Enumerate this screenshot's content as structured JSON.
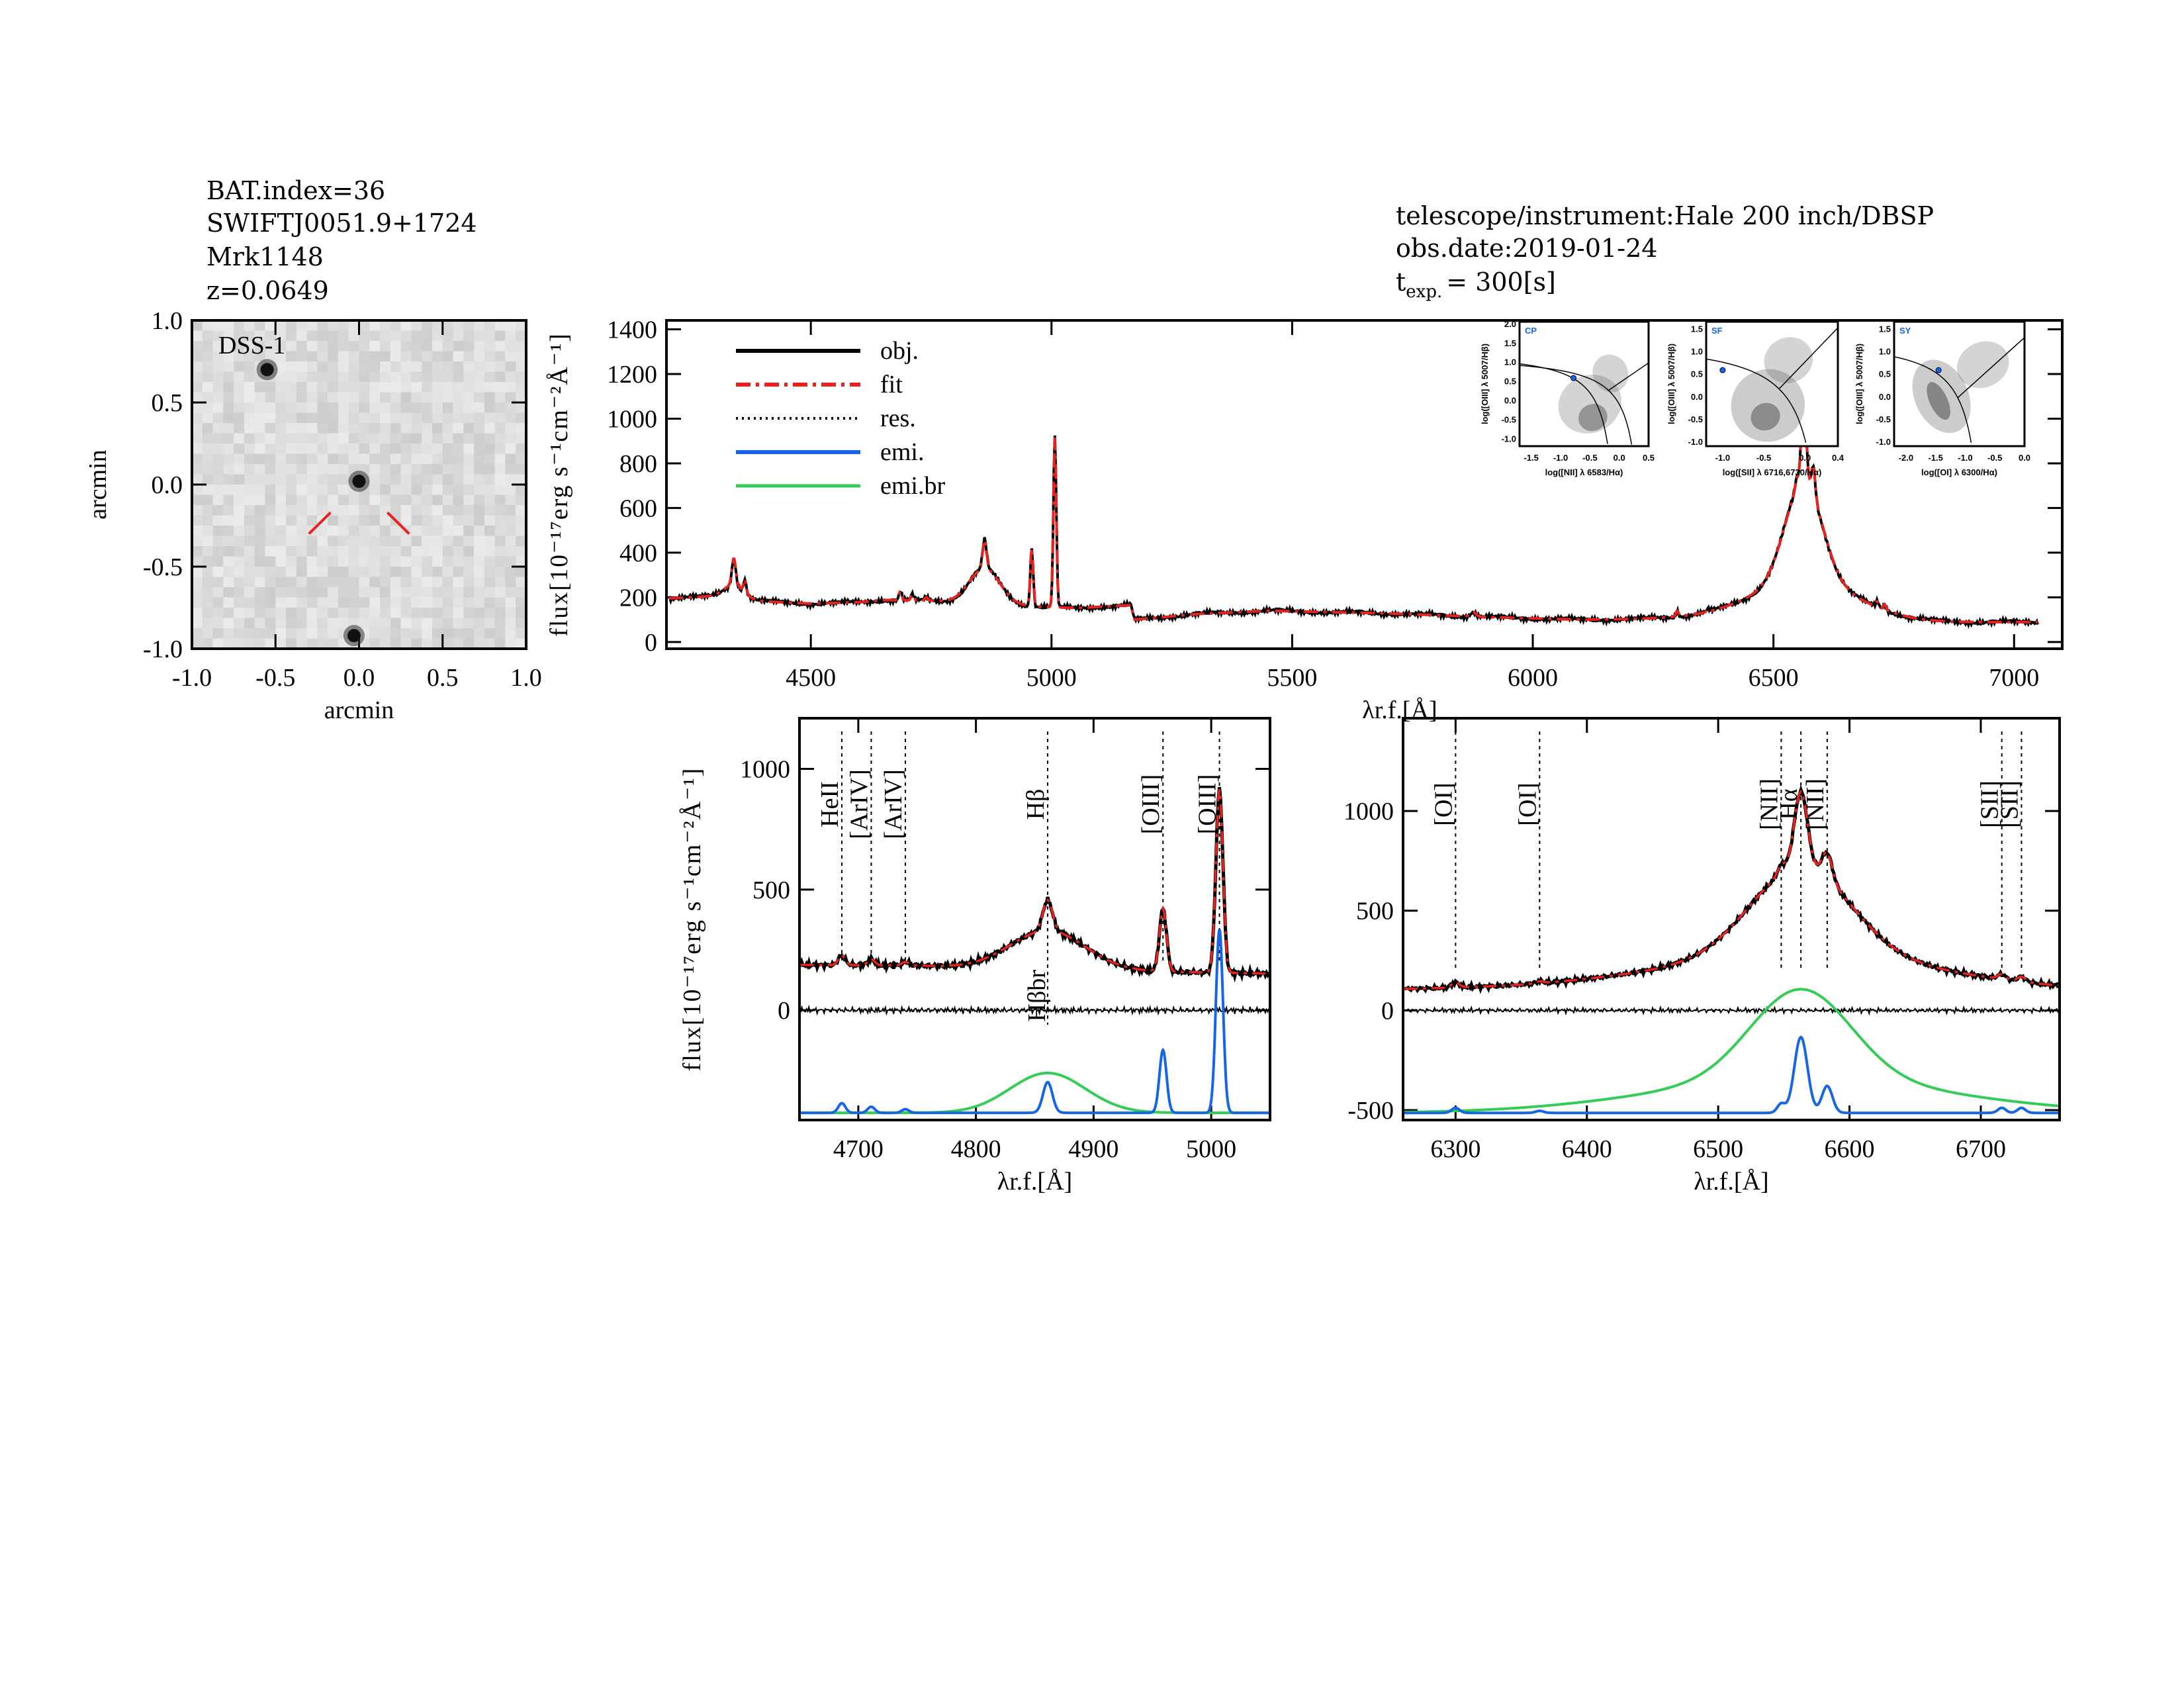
{
  "header_left": [
    "BAT.index=36",
    "SWIFTJ0051.9+1724",
    "Mrk1148",
    "z=0.0649"
  ],
  "header_right": {
    "telescope": "telescope/instrument:Hale 200 inch/DBSP",
    "obs_date": "obs.date:2019-01-24",
    "texp_prefix": "t",
    "texp_sub": "exp.",
    "texp_value": "= 300[s]"
  },
  "colors": {
    "obj": "#000000",
    "fit": "#e8231f",
    "res": "#000000",
    "emi": "#1565e8",
    "emi_br": "#33cc55",
    "marker": "#e8231f"
  },
  "chart_data": [
    {
      "id": "image",
      "type": "image",
      "label": "DSS-1",
      "xlabel": "arcmin",
      "ylabel": "arcmin",
      "xlim": [
        -1.0,
        1.0
      ],
      "ylim": [
        -1.0,
        1.0
      ],
      "xticks": [
        "-1.0",
        "-0.5",
        "0.0",
        "0.5",
        "1.0"
      ],
      "yticks": [
        "-1.0",
        "-0.5",
        "0.0",
        "0.5",
        "1.0"
      ],
      "sources": [
        {
          "x": -0.55,
          "y": 0.7
        },
        {
          "x": 0.0,
          "y": 0.02
        },
        {
          "x": -0.03,
          "y": -0.92
        }
      ]
    },
    {
      "id": "full",
      "type": "line",
      "xlim": [
        4200,
        7100
      ],
      "ylim": [
        -30,
        1440
      ],
      "xticks": [
        4500,
        5000,
        5500,
        6000,
        6500,
        7000
      ],
      "yticks": [
        0,
        200,
        400,
        600,
        800,
        1000,
        1200,
        1400
      ],
      "ylabel": "flux[10⁻¹⁷erg s⁻¹cm⁻²Å⁻¹]",
      "xlabel": "λr.f.[Å]",
      "legend": {
        "placement": "top-left",
        "entries": [
          "obj.",
          "fit",
          "res.",
          "emi.",
          "emi.br"
        ]
      },
      "series": [
        "obj",
        "fit"
      ]
    },
    {
      "id": "hb",
      "type": "line",
      "xlim": [
        4650,
        5050
      ],
      "ylim": [
        -455,
        1210
      ],
      "xticks": [
        4700,
        4800,
        4900,
        5000
      ],
      "yticks": [
        0,
        500,
        1000
      ],
      "ylabel": "flux[10⁻¹⁷erg s⁻¹cm⁻²Å⁻¹]",
      "xlabel": "λr.f.[Å]",
      "emi_offset": -425,
      "line_marks": [
        {
          "label": "HeII",
          "x": 4686
        },
        {
          "label": "[ArIV]",
          "x": 4711
        },
        {
          "label": "[ArIV]",
          "x": 4740
        },
        {
          "label": "Hβ",
          "x": 4861
        },
        {
          "label": "[OIII]",
          "x": 4959
        },
        {
          "label": "[OIII]",
          "x": 5007
        }
      ],
      "broad_label": "Hβbr",
      "series": [
        "obj",
        "fit",
        "res",
        "emi",
        "emi_br"
      ]
    },
    {
      "id": "ha",
      "type": "line",
      "xlim": [
        6260,
        6760
      ],
      "ylim": [
        -550,
        1465
      ],
      "xticks": [
        6300,
        6400,
        6500,
        6600,
        6700
      ],
      "yticks": [
        -500,
        0,
        500,
        1000
      ],
      "xlabel": "λr.f.[Å]",
      "emi_offset": -514,
      "line_marks": [
        {
          "label": "[OI]",
          "x": 6300
        },
        {
          "label": "[OI]",
          "x": 6364
        },
        {
          "label": "[NII]",
          "x": 6548
        },
        {
          "label": "Hα",
          "x": 6563
        },
        {
          "label": "[NII]",
          "x": 6583
        },
        {
          "label": "[SII]",
          "x": 6716
        },
        {
          "label": "[SII]",
          "x": 6731
        }
      ],
      "series": [
        "obj",
        "fit",
        "res",
        "emi",
        "emi_br"
      ]
    }
  ],
  "model": {
    "continuum": [
      [
        4200,
        195
      ],
      [
        4300,
        205
      ],
      [
        4400,
        182
      ],
      [
        4500,
        172
      ],
      [
        4600,
        178
      ],
      [
        4650,
        188
      ],
      [
        4750,
        185
      ],
      [
        4850,
        165
      ],
      [
        4950,
        160
      ],
      [
        5050,
        152
      ],
      [
        5165,
        165
      ],
      [
        5172,
        100
      ],
      [
        5300,
        125
      ],
      [
        5450,
        140
      ],
      [
        5700,
        128
      ],
      [
        5900,
        112
      ],
      [
        6100,
        100
      ],
      [
        6300,
        105
      ],
      [
        6450,
        100
      ],
      [
        6650,
        95
      ],
      [
        6800,
        88
      ],
      [
        7100,
        90
      ]
    ],
    "narrow": [
      {
        "c": 4340,
        "a": 120,
        "s": 4
      },
      {
        "c": 4363,
        "a": 60,
        "s": 3
      },
      {
        "c": 4686,
        "a": 40,
        "s": 3
      },
      {
        "c": 4711,
        "a": 25,
        "s": 3
      },
      {
        "c": 4740,
        "a": 15,
        "s": 3
      },
      {
        "c": 4861,
        "a": 127,
        "s": 4
      },
      {
        "c": 4959,
        "a": 260,
        "s": 3
      },
      {
        "c": 5007,
        "a": 760,
        "s": 3
      },
      {
        "c": 5876,
        "a": 20,
        "s": 6
      },
      {
        "c": 6300,
        "a": 25,
        "s": 3
      },
      {
        "c": 6364,
        "a": 10,
        "s": 3
      },
      {
        "c": 6548,
        "a": 45,
        "s": 3
      },
      {
        "c": 6563,
        "a": 380,
        "s": 5
      },
      {
        "c": 6583,
        "a": 135,
        "s": 4
      },
      {
        "c": 6716,
        "a": 25,
        "s": 3
      },
      {
        "c": 6731,
        "a": 25,
        "s": 3
      }
    ],
    "broad": [
      {
        "c": 4340,
        "a": 60,
        "s": 20
      },
      {
        "c": 4861,
        "a": 165,
        "s": 32
      },
      {
        "c": 6563,
        "a": 450,
        "s": 38
      },
      {
        "c": 6563,
        "a": 170,
        "s": 110
      }
    ]
  },
  "bpt": [
    {
      "tag": "CP",
      "xlabel": "log([NII] λ 6583/Hα)",
      "ylabel": "log([OIII] λ 5007/Hβ)",
      "xlim": [
        -1.7,
        0.5
      ],
      "ylim": [
        -1.2,
        2.05
      ],
      "xticks": [
        "-1.5",
        "-1.0",
        "-0.5",
        "0.0",
        "0.5"
      ],
      "yticks": [
        "-1.0",
        "-0.5",
        "0.0",
        "0.5",
        "1.0",
        "1.5",
        "2.0"
      ],
      "point": [
        -0.78,
        0.58
      ]
    },
    {
      "tag": "SF",
      "xlabel": "log([SII] λ 6716,6730/Hα)",
      "ylabel": "log([OIII] λ 5007/Hβ)",
      "xlim": [
        -1.2,
        0.4
      ],
      "ylim": [
        -1.1,
        1.65
      ],
      "xticks": [
        "-1.0",
        "-0.5",
        "0.0",
        "0.4"
      ],
      "yticks": [
        "-1.0",
        "-0.5",
        "0.0",
        "0.5",
        "1.0",
        "1.5"
      ],
      "point": [
        -1.0,
        0.58
      ]
    },
    {
      "tag": "SY",
      "xlabel": "log([OI] λ 6300/Hα)",
      "ylabel": "log([OIII] λ 5007/Hβ)",
      "xlim": [
        -2.2,
        0.0
      ],
      "ylim": [
        -1.1,
        1.65
      ],
      "xticks": [
        "-2.0",
        "-1.5",
        "-1.0",
        "-0.5",
        "0.0"
      ],
      "yticks": [
        "-1.0",
        "-0.5",
        "0.0",
        "0.5",
        "1.0",
        "1.5"
      ],
      "point": [
        -1.45,
        0.58
      ]
    }
  ]
}
